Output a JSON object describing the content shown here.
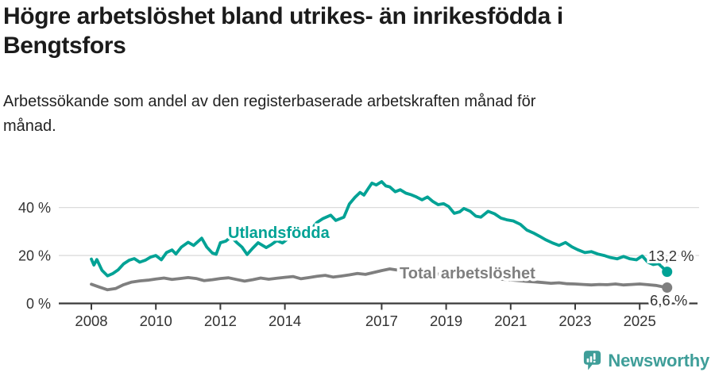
{
  "header": {
    "title": "Högre arbetslöshet bland utrikes- än inrikesfödda i Bengtsfors",
    "subtitle": "Arbetssökande som andel av den registerbaserade arbetskraften månad för månad."
  },
  "footer": {
    "brand": "Newsworthy"
  },
  "colors": {
    "accent_teal": "#00a295",
    "series_gray": "#7f7f7f",
    "grid": "#dcdcdc",
    "axis": "#3a3a3a",
    "tick_text": "#333333",
    "brand_teal": "#3f9e99"
  },
  "chart_data": {
    "type": "line",
    "title": "Högre arbetslöshet bland utrikes- än inrikesfödda i Bengtsfors",
    "subtitle": "Arbetssökande som andel av den registerbaserade arbetskraften månad för månad.",
    "xlabel": "",
    "ylabel": "",
    "unit": "%",
    "grid": true,
    "legend_position": "inline-labels",
    "x_axis": {
      "ticks": [
        2008,
        2010,
        2012,
        2014,
        2017,
        2019,
        2021,
        2023,
        2025
      ],
      "range": [
        2007,
        2026.3
      ]
    },
    "y_axis": {
      "ticks": [
        0,
        20,
        40
      ],
      "tick_suffix": " %",
      "range": [
        0,
        53
      ]
    },
    "series": [
      {
        "name": "Total arbetslöshet",
        "color": "#7f7f7f",
        "end_label": "6,6 %",
        "end_value": 6.6,
        "points": [
          [
            2008,
            8
          ],
          [
            2008.25,
            6.8
          ],
          [
            2008.5,
            5.7
          ],
          [
            2008.75,
            6.2
          ],
          [
            2009,
            7.8
          ],
          [
            2009.25,
            8.9
          ],
          [
            2009.5,
            9.4
          ],
          [
            2009.75,
            9.7
          ],
          [
            2010,
            10.2
          ],
          [
            2010.25,
            10.6
          ],
          [
            2010.5,
            10
          ],
          [
            2010.75,
            10.4
          ],
          [
            2011,
            10.8
          ],
          [
            2011.25,
            10.4
          ],
          [
            2011.5,
            9.5
          ],
          [
            2011.75,
            9.9
          ],
          [
            2012,
            10.4
          ],
          [
            2012.25,
            10.7
          ],
          [
            2012.5,
            10
          ],
          [
            2012.75,
            9.3
          ],
          [
            2013,
            9.9
          ],
          [
            2013.25,
            10.6
          ],
          [
            2013.5,
            10.1
          ],
          [
            2013.75,
            10.5
          ],
          [
            2014,
            10.9
          ],
          [
            2014.25,
            11.2
          ],
          [
            2014.5,
            10.3
          ],
          [
            2014.75,
            10.8
          ],
          [
            2015,
            11.3
          ],
          [
            2015.25,
            11.7
          ],
          [
            2015.5,
            11
          ],
          [
            2015.75,
            11.4
          ],
          [
            2016,
            11.9
          ],
          [
            2016.25,
            12.5
          ],
          [
            2016.5,
            12.1
          ],
          [
            2016.75,
            12.9
          ],
          [
            2017,
            13.7
          ],
          [
            2017.25,
            14.4
          ],
          [
            2017.5,
            13.9
          ],
          [
            2017.75,
            13.5
          ],
          [
            2018,
            13.2
          ],
          [
            2018.5,
            12.6
          ],
          [
            2019,
            11.9
          ],
          [
            2019.5,
            11.3
          ],
          [
            2020,
            10.8
          ],
          [
            2020.5,
            10.4
          ],
          [
            2021,
            9.8
          ],
          [
            2021.5,
            9.2
          ],
          [
            2021.75,
            9
          ],
          [
            2022,
            8.7
          ],
          [
            2022.25,
            8.4
          ],
          [
            2022.5,
            8.6
          ],
          [
            2022.75,
            8.2
          ],
          [
            2023,
            8.1
          ],
          [
            2023.25,
            7.9
          ],
          [
            2023.5,
            7.7
          ],
          [
            2023.75,
            7.9
          ],
          [
            2024,
            7.8
          ],
          [
            2024.25,
            8.1
          ],
          [
            2024.5,
            7.7
          ],
          [
            2024.75,
            7.9
          ],
          [
            2025,
            8.1
          ],
          [
            2025.25,
            7.8
          ],
          [
            2025.5,
            7.5
          ],
          [
            2025.85,
            6.6
          ]
        ]
      },
      {
        "name": "Utlandsfödda",
        "color": "#00a295",
        "end_label": "13,2 %",
        "end_value": 13.2,
        "points": [
          [
            2008,
            18.5
          ],
          [
            2008.08,
            16
          ],
          [
            2008.17,
            18.3
          ],
          [
            2008.33,
            13.8
          ],
          [
            2008.5,
            11.5
          ],
          [
            2008.67,
            12.5
          ],
          [
            2008.83,
            14
          ],
          [
            2009,
            16.5
          ],
          [
            2009.17,
            18
          ],
          [
            2009.33,
            18.7
          ],
          [
            2009.5,
            17.2
          ],
          [
            2009.67,
            18
          ],
          [
            2009.83,
            19.3
          ],
          [
            2010,
            20
          ],
          [
            2010.17,
            18.2
          ],
          [
            2010.33,
            21.2
          ],
          [
            2010.5,
            22.3
          ],
          [
            2010.62,
            20.6
          ],
          [
            2010.79,
            23.5
          ],
          [
            2011,
            25.5
          ],
          [
            2011.17,
            24.2
          ],
          [
            2011.42,
            27.2
          ],
          [
            2011.58,
            23.5
          ],
          [
            2011.75,
            21
          ],
          [
            2011.87,
            20.5
          ],
          [
            2012,
            25.3
          ],
          [
            2012.17,
            26
          ],
          [
            2012.33,
            27.8
          ],
          [
            2012.5,
            25.5
          ],
          [
            2012.67,
            23.5
          ],
          [
            2012.83,
            20.4
          ],
          [
            2013,
            23
          ],
          [
            2013.17,
            25.3
          ],
          [
            2013.42,
            23.3
          ],
          [
            2013.58,
            24.5
          ],
          [
            2013.75,
            26.2
          ],
          [
            2013.92,
            25.2
          ],
          [
            2014.08,
            26.8
          ],
          [
            2014.33,
            27.6
          ],
          [
            2014.58,
            29
          ],
          [
            2014.83,
            31.2
          ],
          [
            2015,
            33.8
          ],
          [
            2015.17,
            35.3
          ],
          [
            2015.42,
            36.8
          ],
          [
            2015.58,
            34.6
          ],
          [
            2015.83,
            36
          ],
          [
            2016,
            41.5
          ],
          [
            2016.17,
            44.2
          ],
          [
            2016.33,
            46.3
          ],
          [
            2016.45,
            45.2
          ],
          [
            2016.58,
            47.8
          ],
          [
            2016.7,
            50.2
          ],
          [
            2016.83,
            49.4
          ],
          [
            2017,
            50.8
          ],
          [
            2017.13,
            49
          ],
          [
            2017.25,
            48.6
          ],
          [
            2017.42,
            46.6
          ],
          [
            2017.58,
            47.4
          ],
          [
            2017.75,
            46
          ],
          [
            2017.9,
            45.4
          ],
          [
            2018.08,
            44.4
          ],
          [
            2018.25,
            43.2
          ],
          [
            2018.42,
            44.4
          ],
          [
            2018.58,
            42.6
          ],
          [
            2018.75,
            41.2
          ],
          [
            2018.92,
            41.6
          ],
          [
            2019.08,
            40.4
          ],
          [
            2019.25,
            37.6
          ],
          [
            2019.42,
            38.2
          ],
          [
            2019.55,
            39.6
          ],
          [
            2019.75,
            38.4
          ],
          [
            2019.92,
            36.4
          ],
          [
            2020.08,
            36
          ],
          [
            2020.3,
            38.4
          ],
          [
            2020.5,
            37.4
          ],
          [
            2020.7,
            35.6
          ],
          [
            2020.9,
            34.8
          ],
          [
            2021.08,
            34.4
          ],
          [
            2021.3,
            33
          ],
          [
            2021.5,
            30.6
          ],
          [
            2021.7,
            29.4
          ],
          [
            2021.9,
            28
          ],
          [
            2022.08,
            26.6
          ],
          [
            2022.3,
            25.2
          ],
          [
            2022.5,
            24.2
          ],
          [
            2022.7,
            25.4
          ],
          [
            2022.9,
            23.6
          ],
          [
            2023.08,
            22.4
          ],
          [
            2023.3,
            21.2
          ],
          [
            2023.5,
            21.6
          ],
          [
            2023.7,
            20.6
          ],
          [
            2023.9,
            20
          ],
          [
            2024.08,
            19.2
          ],
          [
            2024.3,
            18.6
          ],
          [
            2024.5,
            19.6
          ],
          [
            2024.7,
            18.6
          ],
          [
            2024.9,
            18.2
          ],
          [
            2025.08,
            19.8
          ],
          [
            2025.25,
            17.2
          ],
          [
            2025.42,
            16.2
          ],
          [
            2025.58,
            16.6
          ],
          [
            2025.85,
            13.2
          ]
        ]
      }
    ]
  }
}
